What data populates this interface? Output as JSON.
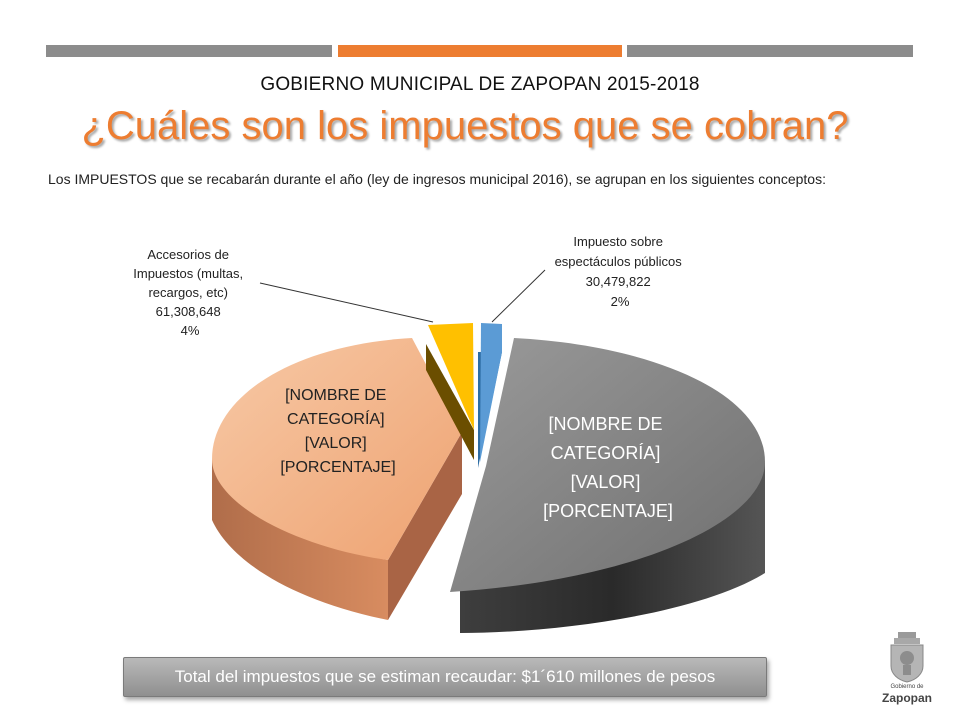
{
  "header": {
    "subtitle": "GOBIERNO MUNICIPAL DE ZAPOPAN 2015-2018",
    "title": "¿Cuáles son los impuestos que se cobran?"
  },
  "intro": "Los IMPUESTOS que se recabarán durante el año (ley de ingresos municipal 2016), se agrupan en los siguientes conceptos:",
  "chart_data": {
    "type": "pie",
    "slices": [
      {
        "label_lines": [
          "Impuesto sobre",
          "espectáculos públicos",
          "30,479,822",
          "2%"
        ],
        "value": 30479822,
        "percent": 2,
        "color": "#5b9bd5"
      },
      {
        "label_lines": [
          "[NOMBRE DE",
          "CATEGORÍA]",
          "[VALOR]",
          "[PORCENTAJE]"
        ],
        "value": null,
        "percent": 50,
        "color": "#7f7f7f"
      },
      {
        "label_lines": [
          "[NOMBRE DE",
          "CATEGORÍA]",
          "[VALOR]",
          "[PORCENTAJE]"
        ],
        "value": null,
        "percent": 44,
        "color": "#f4b183"
      },
      {
        "label_lines": [
          "Accesorios de",
          "Impuestos (multas,",
          "recargos, etc)",
          "61,308,648",
          "4%"
        ],
        "value": 61308648,
        "percent": 4,
        "color": "#ffc000"
      }
    ]
  },
  "footer": {
    "total": "Total del impuestos que se estiman recaudar: $1´610 millones de pesos"
  },
  "logo": {
    "line1": "Gobierno de",
    "line2": "Zapopan"
  }
}
